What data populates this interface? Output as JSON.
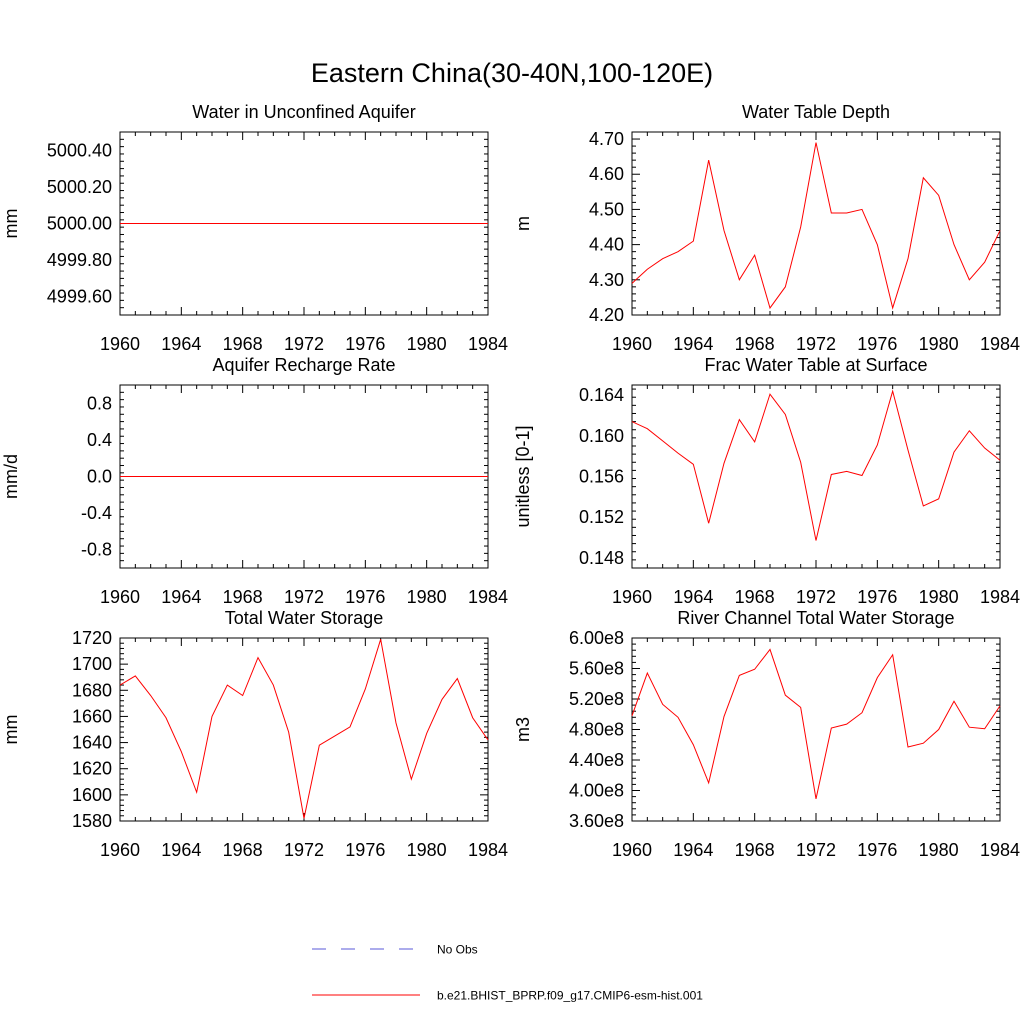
{
  "main_title": "Eastern China(30-40N,100-120E)",
  "colors": {
    "model_line": "#ff0000",
    "obs_line": "#5a5ad8",
    "frame": "#000000"
  },
  "legend": {
    "obs_label": "No Obs",
    "model_label": "b.e21.BHIST_BPRP.f09_g17.CMIP6-esm-hist.001"
  },
  "chart_data": [
    {
      "type": "line",
      "title": "Water in Unconfined Aquifer",
      "ylabel": "mm",
      "xlim": [
        1960,
        1984
      ],
      "ylim": [
        4999.5,
        5000.5
      ],
      "yticks": [
        4999.6,
        4999.8,
        5000.0,
        5000.2,
        5000.4
      ],
      "yticklabels": [
        "4999.60",
        "4999.80",
        "5000.00",
        "5000.20",
        "5000.40"
      ],
      "xticks": [
        1960,
        1964,
        1968,
        1972,
        1976,
        1980,
        1984
      ],
      "xticklabels": [
        "1960",
        "1964",
        "1968",
        "1972",
        "1976",
        "1980",
        "1984"
      ],
      "x": [
        1960,
        1961,
        1962,
        1963,
        1964,
        1965,
        1966,
        1967,
        1968,
        1969,
        1970,
        1971,
        1972,
        1973,
        1974,
        1975,
        1976,
        1977,
        1978,
        1979,
        1980,
        1981,
        1982,
        1983,
        1984
      ],
      "values": [
        5000.0,
        5000.0,
        5000.0,
        5000.0,
        5000.0,
        5000.0,
        5000.0,
        5000.0,
        5000.0,
        5000.0,
        5000.0,
        5000.0,
        5000.0,
        5000.0,
        5000.0,
        5000.0,
        5000.0,
        5000.0,
        5000.0,
        5000.0,
        5000.0,
        5000.0,
        5000.0,
        5000.0,
        5000.0
      ]
    },
    {
      "type": "line",
      "title": "Water Table Depth",
      "ylabel": "m",
      "xlim": [
        1960,
        1984
      ],
      "ylim": [
        4.2,
        4.72
      ],
      "yticks": [
        4.2,
        4.3,
        4.4,
        4.5,
        4.6,
        4.7
      ],
      "yticklabels": [
        "4.20",
        "4.30",
        "4.40",
        "4.50",
        "4.60",
        "4.70"
      ],
      "xticks": [
        1960,
        1964,
        1968,
        1972,
        1976,
        1980,
        1984
      ],
      "xticklabels": [
        "1960",
        "1964",
        "1968",
        "1972",
        "1976",
        "1980",
        "1984"
      ],
      "x": [
        1960,
        1961,
        1962,
        1963,
        1964,
        1965,
        1966,
        1967,
        1968,
        1969,
        1970,
        1971,
        1972,
        1973,
        1974,
        1975,
        1976,
        1977,
        1978,
        1979,
        1980,
        1981,
        1982,
        1983,
        1984
      ],
      "values": [
        4.29,
        4.33,
        4.36,
        4.38,
        4.41,
        4.64,
        4.44,
        4.3,
        4.37,
        4.22,
        4.28,
        4.45,
        4.69,
        4.49,
        4.49,
        4.5,
        4.4,
        4.22,
        4.36,
        4.59,
        4.54,
        4.4,
        4.3,
        4.35,
        4.44
      ]
    },
    {
      "type": "line",
      "title": "Aquifer Recharge Rate",
      "ylabel": "mm/d",
      "xlim": [
        1960,
        1984
      ],
      "ylim": [
        -1.0,
        1.0
      ],
      "yticks": [
        -0.8,
        -0.4,
        0.0,
        0.4,
        0.8
      ],
      "yticklabels": [
        "-0.8",
        "-0.4",
        "0.0",
        "0.4",
        "0.8"
      ],
      "xticks": [
        1960,
        1964,
        1968,
        1972,
        1976,
        1980,
        1984
      ],
      "xticklabels": [
        "1960",
        "1964",
        "1968",
        "1972",
        "1976",
        "1980",
        "1984"
      ],
      "x": [
        1960,
        1961,
        1962,
        1963,
        1964,
        1965,
        1966,
        1967,
        1968,
        1969,
        1970,
        1971,
        1972,
        1973,
        1974,
        1975,
        1976,
        1977,
        1978,
        1979,
        1980,
        1981,
        1982,
        1983,
        1984
      ],
      "values": [
        0.0,
        0.0,
        0.0,
        0.0,
        0.0,
        0.0,
        0.0,
        0.0,
        0.0,
        0.0,
        0.0,
        0.0,
        0.0,
        0.0,
        0.0,
        0.0,
        0.0,
        0.0,
        0.0,
        0.0,
        0.0,
        0.0,
        0.0,
        0.0,
        0.0
      ]
    },
    {
      "type": "line",
      "title": "Frac Water Table at Surface",
      "ylabel": "unitless [0-1]",
      "xlim": [
        1960,
        1984
      ],
      "ylim": [
        0.147,
        0.165
      ],
      "yticks": [
        0.148,
        0.152,
        0.156,
        0.16,
        0.164
      ],
      "yticklabels": [
        "0.148",
        "0.152",
        "0.156",
        "0.160",
        "0.164"
      ],
      "xticks": [
        1960,
        1964,
        1968,
        1972,
        1976,
        1980,
        1984
      ],
      "xticklabels": [
        "1960",
        "1964",
        "1968",
        "1972",
        "1976",
        "1980",
        "1984"
      ],
      "x": [
        1960,
        1961,
        1962,
        1963,
        1964,
        1965,
        1966,
        1967,
        1968,
        1969,
        1970,
        1971,
        1972,
        1973,
        1974,
        1975,
        1976,
        1977,
        1978,
        1979,
        1980,
        1981,
        1982,
        1983,
        1984
      ],
      "values": [
        0.1614,
        0.1607,
        0.1595,
        0.1583,
        0.1572,
        0.1514,
        0.1573,
        0.1616,
        0.1594,
        0.1641,
        0.1621,
        0.1574,
        0.1497,
        0.1562,
        0.1565,
        0.1561,
        0.1591,
        0.1644,
        0.1586,
        0.1531,
        0.1538,
        0.1584,
        0.1605,
        0.1588,
        0.1576
      ]
    },
    {
      "type": "line",
      "title": "Total Water Storage",
      "ylabel": "mm",
      "xlim": [
        1960,
        1984
      ],
      "ylim": [
        1580,
        1720
      ],
      "yticks": [
        1580,
        1600,
        1620,
        1640,
        1660,
        1680,
        1700,
        1720
      ],
      "yticklabels": [
        "1580",
        "1600",
        "1620",
        "1640",
        "1660",
        "1680",
        "1700",
        "1720"
      ],
      "xticks": [
        1960,
        1964,
        1968,
        1972,
        1976,
        1980,
        1984
      ],
      "xticklabels": [
        "1960",
        "1964",
        "1968",
        "1972",
        "1976",
        "1980",
        "1984"
      ],
      "x": [
        1960,
        1961,
        1962,
        1963,
        1964,
        1965,
        1966,
        1967,
        1968,
        1969,
        1970,
        1971,
        1972,
        1973,
        1974,
        1975,
        1976,
        1977,
        1978,
        1979,
        1980,
        1981,
        1982,
        1983,
        1984
      ],
      "values": [
        1684,
        1691,
        1676,
        1659,
        1633,
        1602,
        1660,
        1684,
        1676,
        1705,
        1684,
        1648,
        1582,
        1638,
        1645,
        1652,
        1681,
        1719,
        1655,
        1612,
        1647,
        1673,
        1689,
        1659,
        1642
      ]
    },
    {
      "type": "line",
      "title": "River Channel Total Water Storage",
      "ylabel": "m3",
      "xlim": [
        1960,
        1984
      ],
      "ylim": [
        360000000,
        600000000
      ],
      "yticks": [
        360000000,
        400000000,
        440000000,
        480000000,
        520000000,
        560000000,
        600000000
      ],
      "yticklabels": [
        "3.60e8",
        "4.00e8",
        "4.40e8",
        "4.80e8",
        "5.20e8",
        "5.60e8",
        "6.00e8"
      ],
      "xticks": [
        1960,
        1964,
        1968,
        1972,
        1976,
        1980,
        1984
      ],
      "xticklabels": [
        "1960",
        "1964",
        "1968",
        "1972",
        "1976",
        "1980",
        "1984"
      ],
      "x": [
        1960,
        1961,
        1962,
        1963,
        1964,
        1965,
        1966,
        1967,
        1968,
        1969,
        1970,
        1971,
        1972,
        1973,
        1974,
        1975,
        1976,
        1977,
        1978,
        1979,
        1980,
        1981,
        1982,
        1983,
        1984
      ],
      "values": [
        498000000,
        554000000,
        513000000,
        496000000,
        460000000,
        410000000,
        497000000,
        551000000,
        559000000,
        585000000,
        525000000,
        509000000,
        389000000,
        482000000,
        487000000,
        502000000,
        548000000,
        578000000,
        457000000,
        462000000,
        480000000,
        517000000,
        483000000,
        481000000,
        511000000
      ]
    }
  ]
}
